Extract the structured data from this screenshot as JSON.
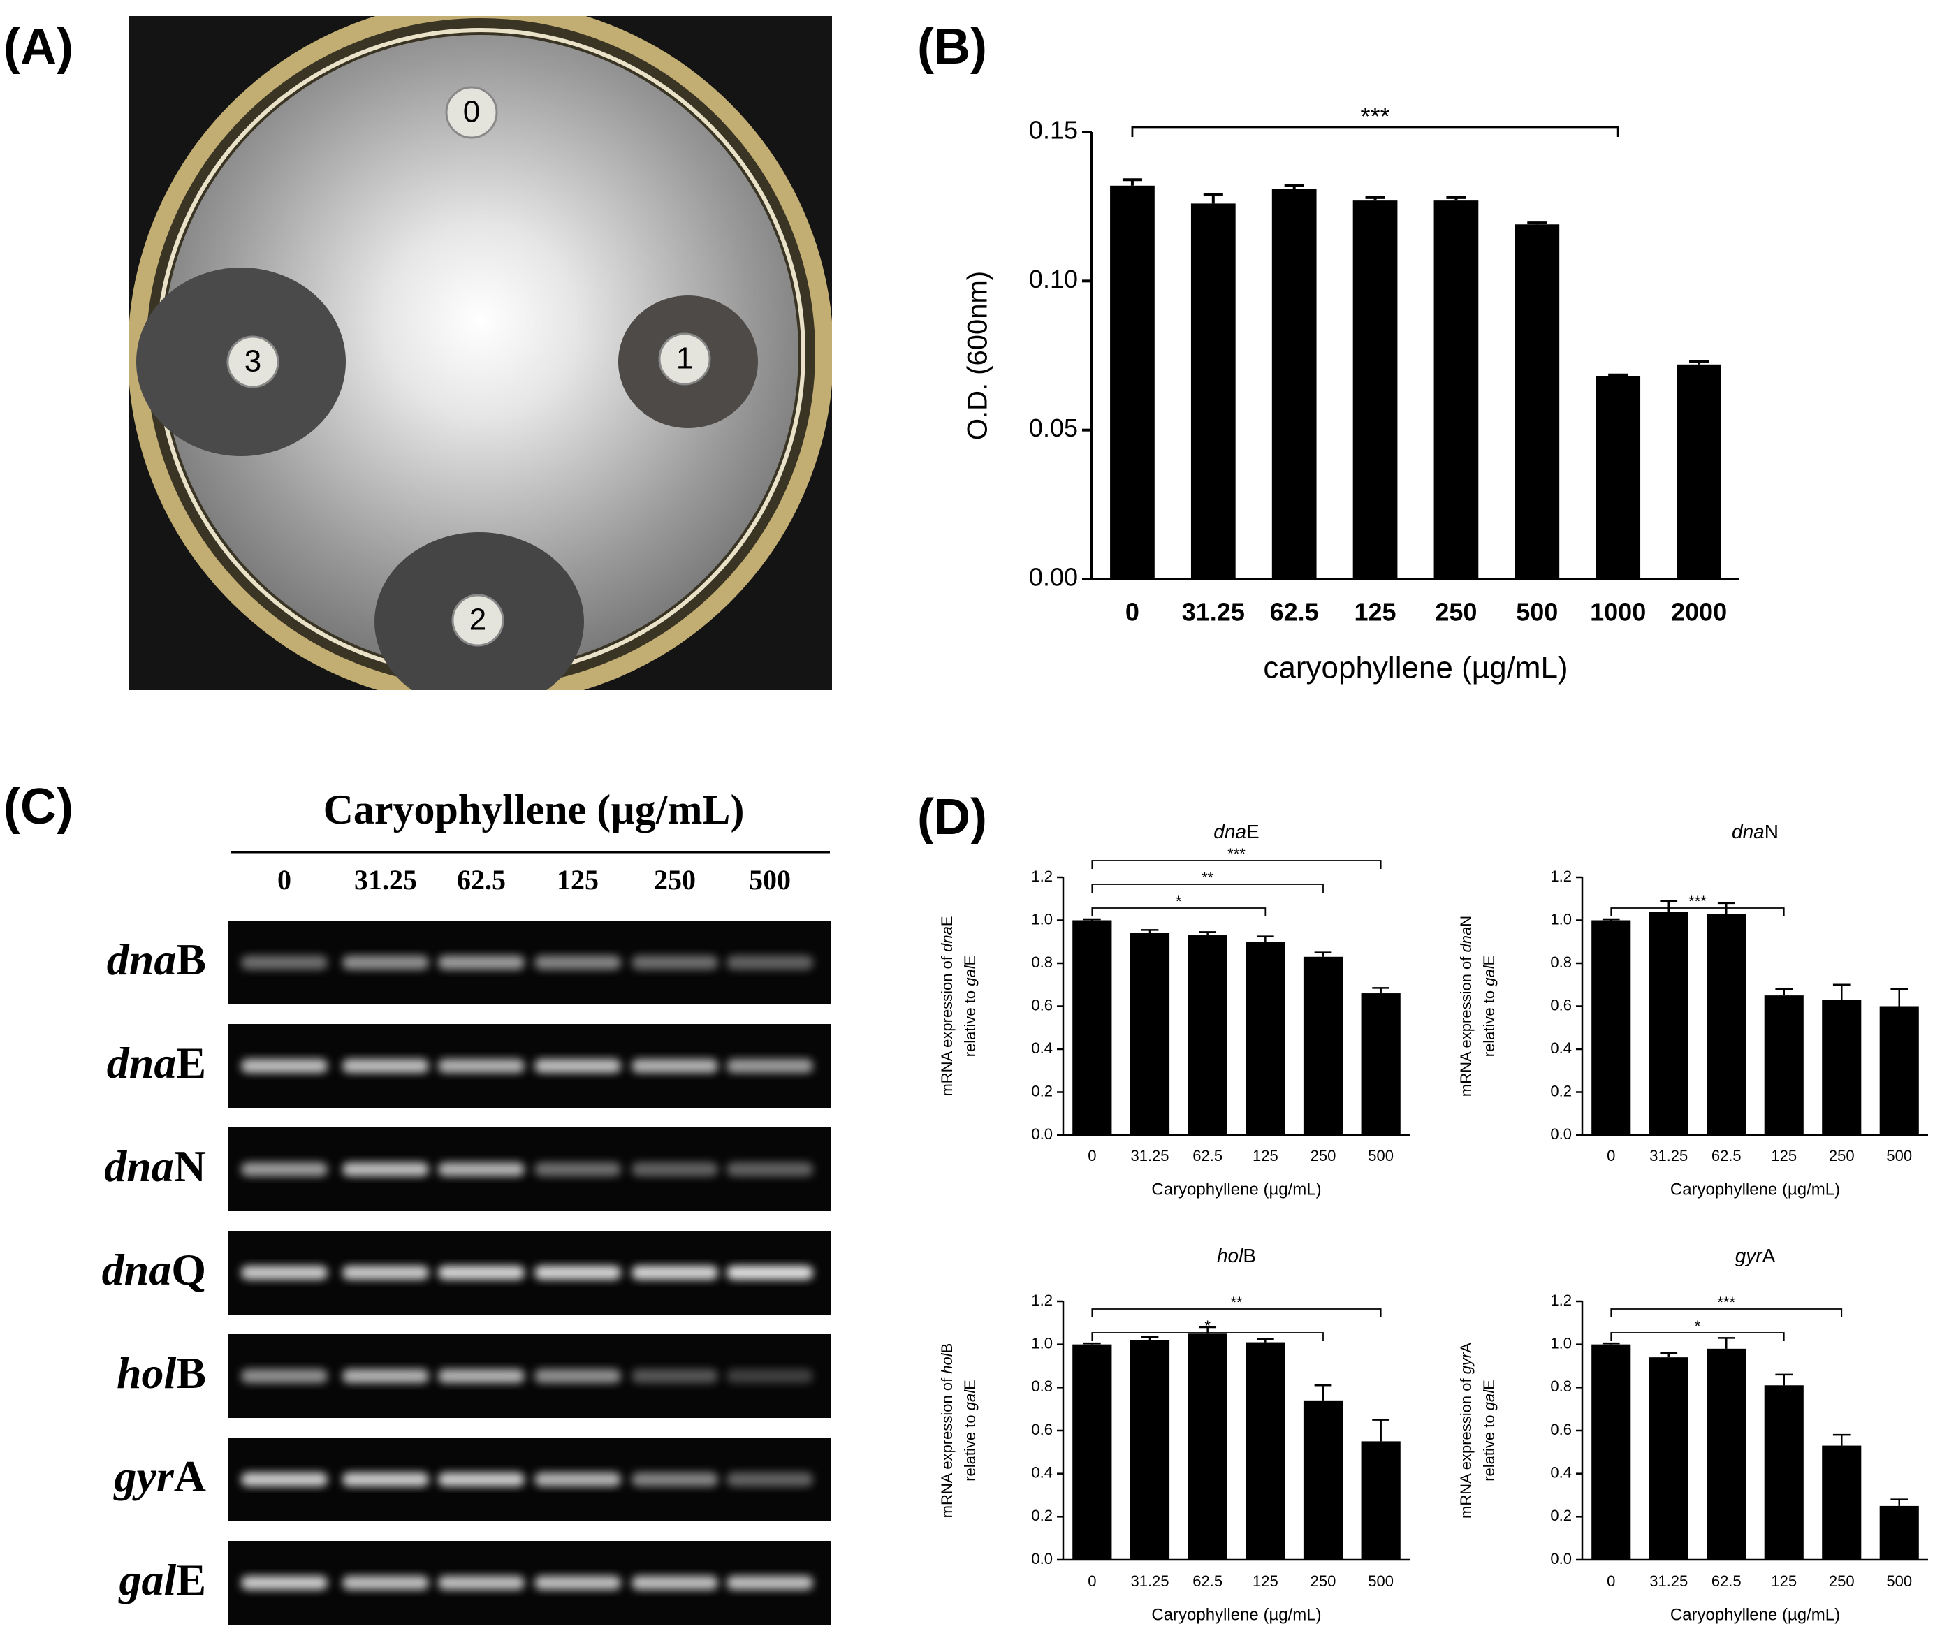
{
  "panels": {
    "a": {
      "label": "(A)",
      "plate_labels": [
        "0",
        "1",
        "2",
        "3"
      ]
    },
    "b": {
      "label": "(B)"
    },
    "c": {
      "label": "(C)",
      "title": "Caryophyllene (µg/mL)",
      "lanes": [
        "0",
        "31.25",
        "62.5",
        "125",
        "250",
        "500"
      ],
      "genes": [
        [
          {
            "text": "dna",
            "style": "italic"
          },
          {
            "text": "B"
          }
        ],
        [
          {
            "text": "dna",
            "style": "italic"
          },
          {
            "text": "E"
          }
        ],
        [
          {
            "text": "dna",
            "style": "italic"
          },
          {
            "text": "N"
          }
        ],
        [
          {
            "text": "dna",
            "style": "italic"
          },
          {
            "text": "Q"
          }
        ],
        [
          {
            "text": "hol",
            "style": "italic"
          },
          {
            "text": "B"
          }
        ],
        [
          {
            "text": "gyr",
            "style": "italic"
          },
          {
            "text": "A"
          }
        ],
        [
          {
            "text": "gal",
            "style": "italic"
          },
          {
            "text": "E"
          }
        ]
      ]
    },
    "d": {
      "label": "(D)"
    }
  },
  "chart_data": [
    {
      "type": "bar",
      "categories": [
        "0",
        "31.25",
        "62.5",
        "125",
        "250",
        "500",
        "1000",
        "2000"
      ],
      "values": [
        0.132,
        0.126,
        0.131,
        0.127,
        0.127,
        0.119,
        0.068,
        0.072
      ],
      "errors": [
        0.002,
        0.003,
        0.001,
        0.001,
        0.001,
        0.0005,
        0.0005,
        0.001
      ],
      "color": "#000000",
      "ylim": [
        0,
        0.15
      ],
      "yticks": [
        {
          "value": 0,
          "label": "0.00"
        },
        0.05,
        {
          "value": 0.1,
          "label": "0.10"
        },
        0.15
      ],
      "xlabel": "caryophyllene (µg/mL)",
      "ylabel": "O.D. (600nm)",
      "annotations": [
        {
          "text": "***",
          "from": "0",
          "to": "1000"
        }
      ]
    },
    {
      "type": "bar",
      "title": [
        {
          "text": "dna",
          "style": "italic"
        },
        {
          "text": "E"
        }
      ],
      "categories": [
        "0",
        "31.25",
        "62.5",
        "125",
        "250",
        "500"
      ],
      "values": [
        1.0,
        0.94,
        0.93,
        0.9,
        0.83,
        0.66
      ],
      "errors": [
        0.005,
        0.015,
        0.015,
        0.025,
        0.02,
        0.025
      ],
      "color": "#000000",
      "ylim": [
        0,
        1.2
      ],
      "yticks": [
        {
          "value": 0,
          "label": "0.0"
        },
        0.2,
        0.4,
        0.6,
        0.8,
        {
          "value": 1,
          "label": "1.0"
        },
        1.2
      ],
      "xlabel": "Caryophyllene (µg/mL)",
      "ylabel": [
        [
          {
            "text": "mRNA expression of "
          },
          {
            "text": "dna",
            "style": "italic"
          },
          {
            "text": "E"
          }
        ],
        [
          {
            "text": "relative to "
          },
          {
            "text": "gal",
            "style": "italic"
          },
          {
            "text": "E"
          }
        ]
      ],
      "annotations": [
        {
          "text": "*",
          "from": "0",
          "to": "125"
        },
        {
          "text": "**",
          "from": "0",
          "to": "250"
        },
        {
          "text": "***",
          "from": "0",
          "to": "500"
        }
      ]
    },
    {
      "type": "bar",
      "title": [
        {
          "text": "dna",
          "style": "italic"
        },
        {
          "text": "N"
        }
      ],
      "categories": [
        "0",
        "31.25",
        "62.5",
        "125",
        "250",
        "500"
      ],
      "values": [
        1.0,
        1.04,
        1.03,
        0.65,
        0.63,
        0.6
      ],
      "errors": [
        0.005,
        0.05,
        0.05,
        0.03,
        0.07,
        0.08
      ],
      "color": "#000000",
      "ylim": [
        0,
        1.2
      ],
      "yticks": [
        {
          "value": 0,
          "label": "0.0"
        },
        0.2,
        0.4,
        0.6,
        0.8,
        {
          "value": 1,
          "label": "1.0"
        },
        1.2
      ],
      "xlabel": "Caryophyllene (µg/mL)",
      "ylabel": [
        [
          {
            "text": "mRNA expression of "
          },
          {
            "text": "dna",
            "style": "italic"
          },
          {
            "text": "N"
          }
        ],
        [
          {
            "text": "relative to "
          },
          {
            "text": "gal",
            "style": "italic"
          },
          {
            "text": "E"
          }
        ]
      ],
      "annotations": [
        {
          "text": "***",
          "from": "0",
          "to": "125"
        }
      ]
    },
    {
      "type": "bar",
      "title": [
        {
          "text": "hol",
          "style": "italic"
        },
        {
          "text": "B"
        }
      ],
      "categories": [
        "0",
        "31.25",
        "62.5",
        "125",
        "250",
        "500"
      ],
      "values": [
        1.0,
        1.02,
        1.05,
        1.01,
        0.74,
        0.55
      ],
      "errors": [
        0.005,
        0.015,
        0.03,
        0.015,
        0.07,
        0.1
      ],
      "color": "#000000",
      "ylim": [
        0,
        1.2
      ],
      "yticks": [
        {
          "value": 0,
          "label": "0.0"
        },
        0.2,
        0.4,
        0.6,
        0.8,
        {
          "value": 1,
          "label": "1.0"
        },
        1.2
      ],
      "xlabel": "Caryophyllene (µg/mL)",
      "ylabel": [
        [
          {
            "text": "mRNA expression of "
          },
          {
            "text": "hol",
            "style": "italic"
          },
          {
            "text": "B"
          }
        ],
        [
          {
            "text": "relative to "
          },
          {
            "text": "gal",
            "style": "italic"
          },
          {
            "text": "E"
          }
        ]
      ],
      "annotations": [
        {
          "text": "*",
          "from": "0",
          "to": "250"
        },
        {
          "text": "**",
          "from": "0",
          "to": "500"
        }
      ]
    },
    {
      "type": "bar",
      "title": [
        {
          "text": "gyr",
          "style": "italic"
        },
        {
          "text": "A"
        }
      ],
      "categories": [
        "0",
        "31.25",
        "62.5",
        "125",
        "250",
        "500"
      ],
      "values": [
        1.0,
        0.94,
        0.98,
        0.81,
        0.53,
        0.25
      ],
      "errors": [
        0.005,
        0.02,
        0.05,
        0.05,
        0.05,
        0.03
      ],
      "color": "#000000",
      "ylim": [
        0,
        1.2
      ],
      "yticks": [
        {
          "value": 0,
          "label": "0.0"
        },
        0.2,
        0.4,
        0.6,
        0.8,
        {
          "value": 1,
          "label": "1.0"
        },
        1.2
      ],
      "xlabel": "Caryophyllene (µg/mL)",
      "ylabel": [
        [
          {
            "text": "mRNA expression of "
          },
          {
            "text": "gyr",
            "style": "italic"
          },
          {
            "text": "A"
          }
        ],
        [
          {
            "text": "relative to "
          },
          {
            "text": "gal",
            "style": "italic"
          },
          {
            "text": "E"
          }
        ]
      ],
      "annotations": [
        {
          "text": "*",
          "from": "0",
          "to": "125"
        },
        {
          "text": "***",
          "from": "0",
          "to": "250"
        }
      ]
    }
  ]
}
